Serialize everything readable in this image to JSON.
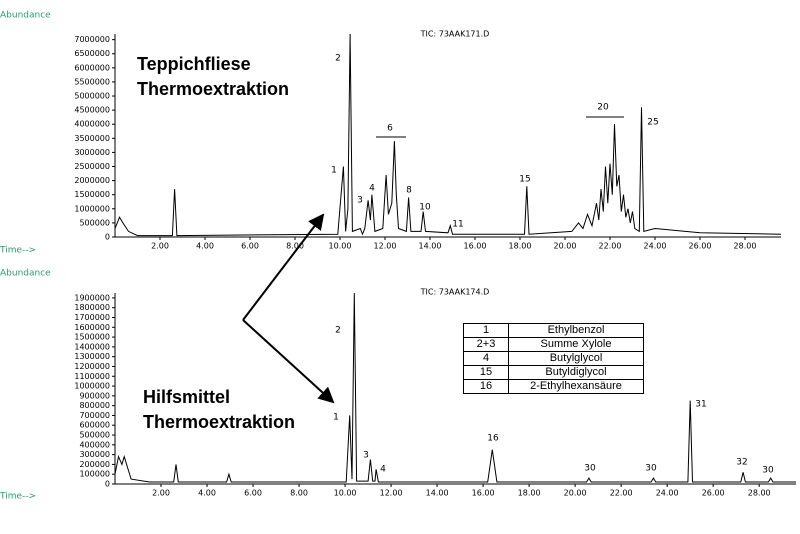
{
  "chart_data": [
    {
      "type": "line",
      "title": "TIC: 73AAK171.D",
      "y_label": "Abundance",
      "x_label": "Time-->",
      "sample_label": [
        "Teppichfliese",
        "Thermoextraktion"
      ],
      "color": "#000000",
      "xlim": [
        0,
        29.6
      ],
      "ylim": [
        0,
        7200000
      ],
      "xticks": [
        {
          "value": 2,
          "label": "2.00"
        },
        {
          "value": 4,
          "label": "4.00"
        },
        {
          "value": 6,
          "label": "6.00"
        },
        {
          "value": 8,
          "label": "8.00"
        },
        {
          "value": 10,
          "label": "10.00"
        },
        {
          "value": 12,
          "label": "12.00"
        },
        {
          "value": 14,
          "label": "14.00"
        },
        {
          "value": 16,
          "label": "16.00"
        },
        {
          "value": 18,
          "label": "18.00"
        },
        {
          "value": 20,
          "label": "20.00"
        },
        {
          "value": 22,
          "label": "22.00"
        },
        {
          "value": 24,
          "label": "24.00"
        },
        {
          "value": 26,
          "label": "26.00"
        },
        {
          "value": 28,
          "label": "28.00"
        }
      ],
      "yticks": [
        0,
        500000,
        1000000,
        1500000,
        2000000,
        2500000,
        3000000,
        3500000,
        4000000,
        4500000,
        5000000,
        5500000,
        6000000,
        6500000,
        7000000
      ],
      "x": [
        0,
        0.2,
        0.35,
        0.6,
        1.0,
        2.55,
        2.65,
        2.75,
        9.9,
        10.15,
        10.25,
        10.35,
        10.45,
        10.55,
        10.9,
        11.0,
        11.1,
        11.25,
        11.35,
        11.42,
        11.55,
        11.9,
        12.05,
        12.15,
        12.3,
        12.42,
        12.5,
        12.6,
        12.95,
        13.05,
        13.15,
        13.6,
        13.7,
        13.8,
        14.8,
        14.9,
        15.0,
        18.2,
        18.3,
        18.4,
        20.3,
        20.6,
        20.8,
        21.0,
        21.2,
        21.4,
        21.5,
        21.6,
        21.7,
        21.8,
        21.9,
        22.0,
        22.1,
        22.2,
        22.3,
        22.4,
        22.5,
        22.6,
        22.7,
        22.8,
        22.9,
        23.0,
        23.1,
        23.3,
        23.4,
        23.5,
        24.0,
        26.0,
        29.6
      ],
      "values": [
        300000,
        700000,
        500000,
        200000,
        50000,
        50000,
        1700000,
        50000,
        100000,
        2500000,
        200000,
        1000000,
        7200000,
        200000,
        300000,
        100000,
        300000,
        1300000,
        600000,
        1500000,
        200000,
        300000,
        2200000,
        800000,
        1200000,
        3400000,
        1500000,
        300000,
        200000,
        1400000,
        200000,
        200000,
        900000,
        200000,
        150000,
        400000,
        100000,
        100000,
        1800000,
        100000,
        200000,
        500000,
        300000,
        800000,
        400000,
        1200000,
        600000,
        1700000,
        900000,
        2500000,
        1200000,
        2600000,
        1500000,
        4000000,
        1800000,
        2200000,
        900000,
        1500000,
        700000,
        1000000,
        500000,
        900000,
        300000,
        200000,
        4600000,
        200000,
        300000,
        150000,
        100000
      ],
      "peak_labels": [
        "2",
        "1",
        "3",
        "4",
        "6",
        "8",
        "10",
        "11",
        "15",
        "20",
        "25"
      ]
    },
    {
      "type": "line",
      "title": "TIC: 73AAK174.D",
      "y_label": "Abundance",
      "x_label": "Time-->",
      "sample_label": [
        "Hilfsmittel",
        "Thermoextraktion"
      ],
      "color": "#000000",
      "xlim": [
        0,
        29.6
      ],
      "ylim": [
        0,
        1950000
      ],
      "xticks": [
        {
          "value": 2,
          "label": "2.00"
        },
        {
          "value": 4,
          "label": "4.00"
        },
        {
          "value": 6,
          "label": "6.00"
        },
        {
          "value": 8,
          "label": "8.00"
        },
        {
          "value": 10,
          "label": "10.00"
        },
        {
          "value": 12,
          "label": "12.00"
        },
        {
          "value": 14,
          "label": "14.00"
        },
        {
          "value": 16,
          "label": "16.00"
        },
        {
          "value": 18,
          "label": "18.00"
        },
        {
          "value": 20,
          "label": "20.00"
        },
        {
          "value": 22,
          "label": "22.00"
        },
        {
          "value": 24,
          "label": "24.00"
        },
        {
          "value": 26,
          "label": "26.00"
        },
        {
          "value": 28,
          "label": "28.00"
        }
      ],
      "yticks": [
        0,
        100000,
        200000,
        300000,
        400000,
        500000,
        600000,
        700000,
        800000,
        900000,
        1000000,
        1100000,
        1200000,
        1300000,
        1400000,
        1500000,
        1600000,
        1700000,
        1800000,
        1900000
      ],
      "x": [
        0,
        0.15,
        0.3,
        0.4,
        0.7,
        1.5,
        2.55,
        2.65,
        2.75,
        4.85,
        4.95,
        5.05,
        10.05,
        10.2,
        10.3,
        10.4,
        10.5,
        11.0,
        11.1,
        11.2,
        11.3,
        11.35,
        11.45,
        16.2,
        16.4,
        16.6,
        20.5,
        20.6,
        20.7,
        23.3,
        23.4,
        23.5,
        24.9,
        25.0,
        25.1,
        27.2,
        27.3,
        27.4,
        28.4,
        28.5,
        28.6,
        29.6
      ],
      "values": [
        100000,
        280000,
        200000,
        280000,
        50000,
        20000,
        20000,
        200000,
        20000,
        20000,
        100000,
        20000,
        20000,
        700000,
        50000,
        1950000,
        30000,
        30000,
        250000,
        30000,
        30000,
        150000,
        20000,
        20000,
        350000,
        20000,
        20000,
        60000,
        20000,
        20000,
        60000,
        20000,
        20000,
        850000,
        20000,
        20000,
        120000,
        20000,
        20000,
        60000,
        20000,
        20000
      ],
      "peak_labels": [
        "2",
        "1",
        "3",
        "4",
        "16",
        "30",
        "30",
        "31",
        "32",
        "30"
      ]
    }
  ],
  "table": {
    "rows": [
      [
        "1",
        "Ethylbenzol"
      ],
      [
        "2+3",
        "Summe Xylole"
      ],
      [
        "4",
        "Butylglycol"
      ],
      [
        "15",
        "Butyldiglycol"
      ],
      [
        "16",
        "2-Ethylhexansäure"
      ]
    ]
  }
}
